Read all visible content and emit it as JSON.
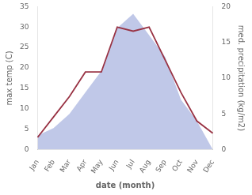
{
  "chart_data": {
    "type": "line",
    "categories": [
      "Jan",
      "Feb",
      "Mar",
      "Apr",
      "May",
      "Jun",
      "Jul",
      "Aug",
      "Sep",
      "Oct",
      "Nov",
      "Dec"
    ],
    "series": [
      {
        "type": "area",
        "color": "#c0c8e8",
        "axis": "y2",
        "values": [
          2,
          3,
          5,
          8,
          11,
          17,
          19,
          16,
          13,
          7,
          4,
          0
        ]
      },
      {
        "type": "line",
        "color": "#993344",
        "values": [
          3,
          8,
          13,
          19,
          19,
          30,
          29,
          30,
          22,
          14,
          7,
          4
        ]
      }
    ],
    "xlabel": "date (month)",
    "ylabel": "max temp (C)",
    "y2label": "med. precipitation (kg/m2)",
    "ylim": [
      0,
      35
    ],
    "yticks": [
      0,
      5,
      10,
      15,
      20,
      25,
      30,
      35
    ],
    "y2lim": [
      0,
      20
    ],
    "y2ticks": [
      0,
      5,
      10,
      15,
      20
    ],
    "grid": false
  }
}
